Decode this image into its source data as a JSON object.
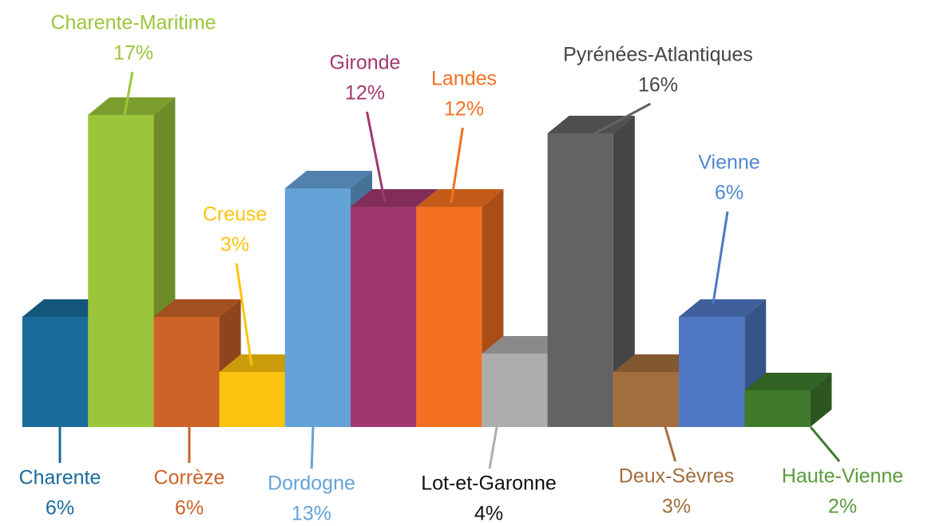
{
  "chart_data": {
    "type": "bar3d",
    "categories": [
      "Charente",
      "Charente-Maritime",
      "Corrèze",
      "Creuse",
      "Dordogne",
      "Gironde",
      "Landes",
      "Lot-et-Garonne",
      "Pyrénées-Atlantiques",
      "Deux-Sèvres",
      "Vienne",
      "Haute-Vienne"
    ],
    "values": [
      6,
      17,
      6,
      3,
      13,
      12,
      12,
      4,
      16,
      3,
      6,
      2
    ],
    "value_labels": [
      "6%",
      "17%",
      "6%",
      "3%",
      "13%",
      "12%",
      "12%",
      "4%",
      "16%",
      "3%",
      "6%",
      "2%"
    ],
    "colors": [
      "#1a6b9a",
      "#9bc63b",
      "#cc6327",
      "#fcc30f",
      "#64a3d8",
      "#a1376f",
      "#f37021",
      "#adadad",
      "#636363",
      "#a26e3d",
      "#4f78c4",
      "#3f7a2d"
    ],
    "label_colors": [
      "#1a6b9a",
      "#9bc63b",
      "#cc6327",
      "#fcc30f",
      "#64a3d8",
      "#a1376f",
      "#f37021",
      "#111111",
      "#444444",
      "#a26e3d",
      "#4f88d0",
      "#5a9a3a"
    ]
  }
}
